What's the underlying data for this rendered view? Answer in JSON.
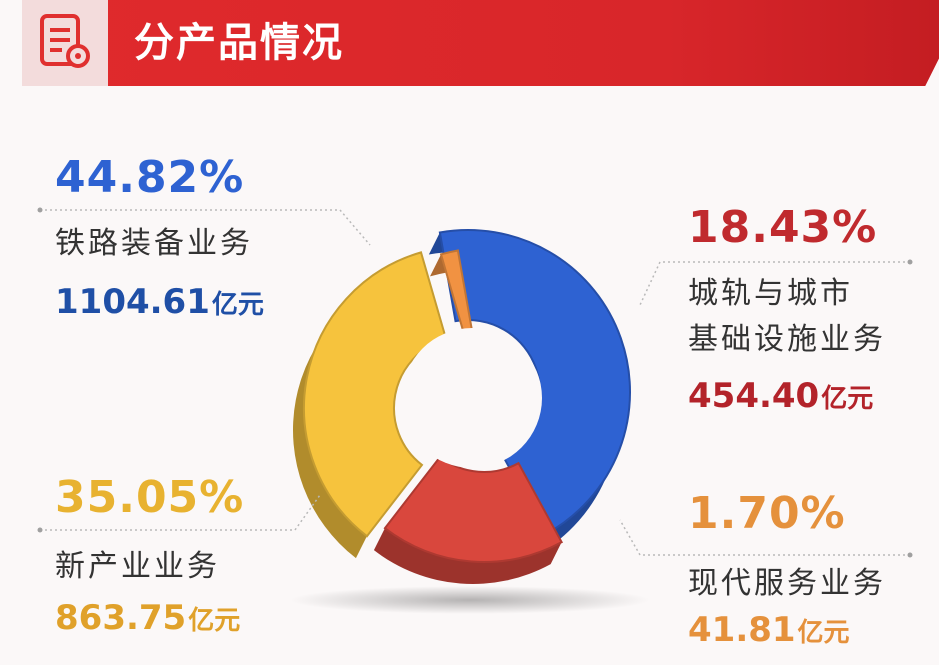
{
  "header": {
    "title": "分产品情况",
    "icon": "document-gear-icon"
  },
  "colors": {
    "rail": "#2e62d2",
    "urban": "#d9473d",
    "new": "#f6c33d",
    "service": "#f19242",
    "rail_text": "#1f4fa6",
    "urban_text": "#b3232a",
    "new_text": "#e0a12a",
    "service_text": "#e5913c"
  },
  "segments": [
    {
      "key": "rail",
      "percent": "44.82%",
      "name": "铁路装备业务",
      "value": "1104.61",
      "unit": "亿元"
    },
    {
      "key": "urban",
      "percent": "18.43%",
      "name_line1": "城轨与城市",
      "name_line2": "基础设施业务",
      "value": "454.40",
      "unit": "亿元"
    },
    {
      "key": "new",
      "percent": "35.05%",
      "name": "新产业业务",
      "value": "863.75",
      "unit": "亿元"
    },
    {
      "key": "service",
      "percent": "1.70%",
      "name": "现代服务业务",
      "value": "41.81",
      "unit": "亿元"
    }
  ],
  "chart_data": {
    "type": "pie",
    "style": "3d-donut",
    "categories": [
      "铁路装备业务",
      "城轨与城市基础设施业务",
      "新产业业务",
      "现代服务业务"
    ],
    "values": [
      44.82,
      18.43,
      35.05,
      1.7
    ],
    "amounts": [
      1104.61,
      454.4,
      863.75,
      41.81
    ],
    "amount_unit": "亿元",
    "colors": [
      "#2e62d2",
      "#d9473d",
      "#f6c33d",
      "#f19242"
    ]
  }
}
